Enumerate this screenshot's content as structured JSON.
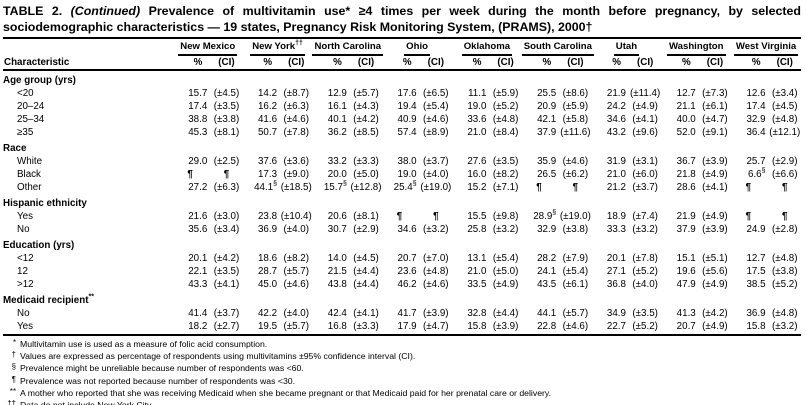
{
  "title": {
    "part1": "TABLE 2. ",
    "part2": "(Continued)",
    "part3": " Prevalence of multivitamin use* ≥4 times per week during the month before pregnancy, by selected sociodemographic characteristics — 19 states, Pregnancy Risk Monitoring System, (PRAMS), 2000†"
  },
  "header": {
    "characteristic_label": "Characteristic",
    "pct_label": "%",
    "ci_label": "(CI)"
  },
  "columns": [
    {
      "label": "New Mexico",
      "sup": ""
    },
    {
      "label": "New York",
      "sup": "††"
    },
    {
      "label": "North Carolina",
      "sup": ""
    },
    {
      "label": "Ohio",
      "sup": ""
    },
    {
      "label": "Oklahoma",
      "sup": ""
    },
    {
      "label": "South Carolina",
      "sup": ""
    },
    {
      "label": "Utah",
      "sup": ""
    },
    {
      "label": "Washington",
      "sup": ""
    },
    {
      "label": "West Virginia",
      "sup": ""
    }
  ],
  "sections": [
    {
      "label": "Age group (yrs)",
      "sup": "",
      "rows": [
        {
          "label": "<20",
          "cells": [
            [
              "15.7",
              "(±4.5)"
            ],
            [
              "14.2",
              "(±8.7)"
            ],
            [
              "12.9",
              "(±5.7)"
            ],
            [
              "17.6",
              "(±6.5)"
            ],
            [
              "11.1",
              "(±5.9)"
            ],
            [
              "25.5",
              "(±8.6)"
            ],
            [
              "21.9",
              "(±11.4)"
            ],
            [
              "12.7",
              "(±7.3)"
            ],
            [
              "12.6",
              "(±3.4)"
            ]
          ]
        },
        {
          "label": "20–24",
          "cells": [
            [
              "17.4",
              "(±3.5)"
            ],
            [
              "16.2",
              "(±6.3)"
            ],
            [
              "16.1",
              "(±4.3)"
            ],
            [
              "19.4",
              "(±5.4)"
            ],
            [
              "19.0",
              "(±5.2)"
            ],
            [
              "20.9",
              "(±5.9)"
            ],
            [
              "24.2",
              "(±4.9)"
            ],
            [
              "21.1",
              "(±6.1)"
            ],
            [
              "17.4",
              "(±4.5)"
            ]
          ]
        },
        {
          "label": "25–34",
          "cells": [
            [
              "38.8",
              "(±3.8)"
            ],
            [
              "41.6",
              "(±4.6)"
            ],
            [
              "40.1",
              "(±4.2)"
            ],
            [
              "40.9",
              "(±4.6)"
            ],
            [
              "33.6",
              "(±4.8)"
            ],
            [
              "42.1",
              "(±5.8)"
            ],
            [
              "34.6",
              "(±4.1)"
            ],
            [
              "40.0",
              "(±4.7)"
            ],
            [
              "32.9",
              "(±4.8)"
            ]
          ]
        },
        {
          "label": "≥35",
          "cells": [
            [
              "45.3",
              "(±8.1)"
            ],
            [
              "50.7",
              "(±7.8)"
            ],
            [
              "36.2",
              "(±8.5)"
            ],
            [
              "57.4",
              "(±8.9)"
            ],
            [
              "21.0",
              "(±8.4)"
            ],
            [
              "37.9",
              "(±11.6)"
            ],
            [
              "43.2",
              "(±9.6)"
            ],
            [
              "52.0",
              "(±9.1)"
            ],
            [
              "36.4",
              "(±12.1)"
            ]
          ]
        }
      ]
    },
    {
      "label": "Race",
      "sup": "",
      "rows": [
        {
          "label": "White",
          "cells": [
            [
              "29.0",
              "(±2.5)"
            ],
            [
              "37.6",
              "(±3.6)"
            ],
            [
              "33.2",
              "(±3.3)"
            ],
            [
              "38.0",
              "(±3.7)"
            ],
            [
              "27.6",
              "(±3.5)"
            ],
            [
              "35.9",
              "(±4.6)"
            ],
            [
              "31.9",
              "(±3.1)"
            ],
            [
              "36.7",
              "(±3.9)"
            ],
            [
              "25.7",
              "(±2.9)"
            ]
          ]
        },
        {
          "label": "Black",
          "cells": [
            [
              "¶",
              "¶"
            ],
            [
              "17.3",
              "(±9.0)"
            ],
            [
              "20.0",
              "(±5.0)"
            ],
            [
              "19.0",
              "(±4.0)"
            ],
            [
              "16.0",
              "(±8.2)"
            ],
            [
              "26.5",
              "(±6.2)"
            ],
            [
              "21.0",
              "(±6.0)"
            ],
            [
              "21.8",
              "(±4.9)"
            ],
            [
              "6.6§",
              "(±6.6)"
            ]
          ]
        },
        {
          "label": "Other",
          "cells": [
            [
              "27.2",
              "(±6.3)"
            ],
            [
              "44.1§",
              "(±18.5)"
            ],
            [
              "15.7§",
              "(±12.8)"
            ],
            [
              "25.4§",
              "(±19.0)"
            ],
            [
              "15.2",
              "(±7.1)"
            ],
            [
              "¶",
              "¶"
            ],
            [
              "21.2",
              "(±3.7)"
            ],
            [
              "28.6",
              "(±4.1)"
            ],
            [
              "¶",
              "¶"
            ]
          ]
        }
      ]
    },
    {
      "label": "Hispanic ethnicity",
      "sup": "",
      "rows": [
        {
          "label": "Yes",
          "cells": [
            [
              "21.6",
              "(±3.0)"
            ],
            [
              "23.8",
              "(±10.4)"
            ],
            [
              "20.6",
              "(±8.1)"
            ],
            [
              "¶",
              "¶"
            ],
            [
              "15.5",
              "(±9.8)"
            ],
            [
              "28.9§",
              "(±19.0)"
            ],
            [
              "18.9",
              "(±7.4)"
            ],
            [
              "21.9",
              "(±4.9)"
            ],
            [
              "¶",
              "¶"
            ]
          ]
        },
        {
          "label": "No",
          "cells": [
            [
              "35.6",
              "(±3.4)"
            ],
            [
              "36.9",
              "(±4.0)"
            ],
            [
              "30.7",
              "(±2.9)"
            ],
            [
              "34.6",
              "(±3.2)"
            ],
            [
              "25.8",
              "(±3.2)"
            ],
            [
              "32.9",
              "(±3.8)"
            ],
            [
              "33.3",
              "(±3.2)"
            ],
            [
              "37.9",
              "(±3.9)"
            ],
            [
              "24.9",
              "(±2.8)"
            ]
          ]
        }
      ]
    },
    {
      "label": "Education (yrs)",
      "sup": "",
      "rows": [
        {
          "label": "<12",
          "cells": [
            [
              "20.1",
              "(±4.2)"
            ],
            [
              "18.6",
              "(±8.2)"
            ],
            [
              "14.0",
              "(±4.5)"
            ],
            [
              "20.7",
              "(±7.0)"
            ],
            [
              "13.1",
              "(±5.4)"
            ],
            [
              "28.2",
              "(±7.9)"
            ],
            [
              "20.1",
              "(±7.8)"
            ],
            [
              "15.1",
              "(±5.1)"
            ],
            [
              "12.7",
              "(±4.8)"
            ]
          ]
        },
        {
          "label": "12",
          "cells": [
            [
              "22.1",
              "(±3.5)"
            ],
            [
              "28.7",
              "(±5.7)"
            ],
            [
              "21.5",
              "(±4.4)"
            ],
            [
              "23.6",
              "(±4.8)"
            ],
            [
              "21.0",
              "(±5.0)"
            ],
            [
              "24.1",
              "(±5.4)"
            ],
            [
              "27.1",
              "(±5.2)"
            ],
            [
              "19.6",
              "(±5.6)"
            ],
            [
              "17.5",
              "(±3.8)"
            ]
          ]
        },
        {
          "label": ">12",
          "cells": [
            [
              "43.3",
              "(±4.1)"
            ],
            [
              "45.0",
              "(±4.6)"
            ],
            [
              "43.8",
              "(±4.4)"
            ],
            [
              "46.2",
              "(±4.6)"
            ],
            [
              "33.5",
              "(±4.9)"
            ],
            [
              "43.5",
              "(±6.1)"
            ],
            [
              "36.8",
              "(±4.0)"
            ],
            [
              "47.9",
              "(±4.9)"
            ],
            [
              "38.5",
              "(±5.2)"
            ]
          ]
        }
      ]
    },
    {
      "label": "Medicaid recipient",
      "sup": "**",
      "rows": [
        {
          "label": "No",
          "cells": [
            [
              "41.4",
              "(±3.7)"
            ],
            [
              "42.2",
              "(±4.0)"
            ],
            [
              "42.4",
              "(±4.1)"
            ],
            [
              "41.7",
              "(±3.9)"
            ],
            [
              "32.8",
              "(±4.4)"
            ],
            [
              "44.1",
              "(±5.7)"
            ],
            [
              "34.9",
              "(±3.5)"
            ],
            [
              "41.3",
              "(±4.2)"
            ],
            [
              "36.9",
              "(±4.8)"
            ]
          ]
        },
        {
          "label": "Yes",
          "cells": [
            [
              "18.2",
              "(±2.7)"
            ],
            [
              "19.5",
              "(±5.7)"
            ],
            [
              "16.8",
              "(±3.3)"
            ],
            [
              "17.9",
              "(±4.7)"
            ],
            [
              "15.8",
              "(±3.9)"
            ],
            [
              "22.8",
              "(±4.6)"
            ],
            [
              "22.7",
              "(±5.2)"
            ],
            [
              "20.7",
              "(±4.9)"
            ],
            [
              "15.8",
              "(±3.2)"
            ]
          ]
        }
      ]
    }
  ],
  "footnotes": [
    {
      "marker": "*",
      "text": "Multivitamin use is used as a measure of folic acid consumption."
    },
    {
      "marker": "†",
      "text": "Values are expressed as percentage of respondents using multivitamins ±95% confidence interval (CI)."
    },
    {
      "marker": "§",
      "text": "Prevalence might be unreliable because number of respondents was <60."
    },
    {
      "marker": "¶",
      "text": "Prevalence was not reported because number of respondents was <30."
    },
    {
      "marker": "**",
      "text": "A mother who reported that she was receiving Medicaid when she became pregnant or that Medicaid paid for her prenatal care or delivery."
    },
    {
      "marker": "††",
      "text": "Data do not include New York City."
    }
  ]
}
